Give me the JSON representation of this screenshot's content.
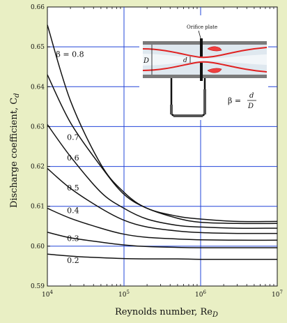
{
  "chart_data": {
    "type": "line",
    "title": "",
    "xlabel": "Reynolds number, Re",
    "xlabel_sub": "D",
    "ylabel": "Discharge coefficient, C",
    "ylabel_sub": "d",
    "xscale": "log",
    "xlim": [
      10000,
      10000000
    ],
    "ylim": [
      0.59,
      0.66
    ],
    "x_ticks": [
      {
        "v": 10000,
        "base": "10",
        "exp": "4"
      },
      {
        "v": 100000,
        "base": "10",
        "exp": "5"
      },
      {
        "v": 1000000,
        "base": "10",
        "exp": "6"
      },
      {
        "v": 10000000,
        "base": "10",
        "exp": "7"
      }
    ],
    "y_ticks": [
      "0.59",
      "0.60",
      "0.61",
      "0.62",
      "0.63",
      "0.64",
      "0.65",
      "0.66"
    ],
    "grid": true,
    "series": [
      {
        "name": "β = 0.8",
        "x": [
          10000,
          20000,
          50000,
          100000,
          200000,
          500000,
          1000000,
          3000000,
          10000000
        ],
        "y": [
          0.6555,
          0.6365,
          0.6205,
          0.6135,
          0.6095,
          0.6075,
          0.6068,
          0.6062,
          0.6062
        ]
      },
      {
        "name": "0.7",
        "x": [
          10000,
          20000,
          50000,
          100000,
          200000,
          500000,
          1000000,
          3000000,
          10000000
        ],
        "y": [
          0.643,
          0.631,
          0.62,
          0.613,
          0.6095,
          0.607,
          0.606,
          0.6057,
          0.6057
        ]
      },
      {
        "name": "0.6",
        "x": [
          10000,
          20000,
          50000,
          100000,
          200000,
          500000,
          1000000,
          3000000,
          10000000
        ],
        "y": [
          0.6305,
          0.6225,
          0.6135,
          0.6095,
          0.6068,
          0.6052,
          0.6048,
          0.6045,
          0.6045
        ]
      },
      {
        "name": "0.5",
        "x": [
          10000,
          20000,
          50000,
          100000,
          200000,
          500000,
          1000000,
          3000000,
          10000000
        ],
        "y": [
          0.6195,
          0.6145,
          0.6095,
          0.6065,
          0.6048,
          0.6038,
          0.6034,
          0.6032,
          0.6032
        ]
      },
      {
        "name": "0.4",
        "x": [
          10000,
          20000,
          50000,
          100000,
          200000,
          500000,
          1000000,
          3000000,
          10000000
        ],
        "y": [
          0.6095,
          0.607,
          0.6045,
          0.603,
          0.6022,
          0.6018,
          0.6016,
          0.6015,
          0.6015
        ]
      },
      {
        "name": "0.3",
        "x": [
          10000,
          20000,
          50000,
          100000,
          200000,
          500000,
          1000000,
          3000000,
          10000000
        ],
        "y": [
          0.6035,
          0.6021,
          0.601,
          0.6003,
          0.5999,
          0.5997,
          0.5996,
          0.5996,
          0.5996
        ]
      },
      {
        "name": "0.2",
        "x": [
          10000,
          20000,
          50000,
          100000,
          200000,
          500000,
          1000000,
          3000000,
          10000000
        ],
        "y": [
          0.598,
          0.5975,
          0.5971,
          0.5969,
          0.5968,
          0.5968,
          0.5967,
          0.5967,
          0.5967
        ]
      }
    ],
    "inset": {
      "plate_label": "Orifice plate",
      "pipe_symbol": "D",
      "bore_symbol": "d",
      "formula_lhs": "β =",
      "formula_num": "d",
      "formula_den": "D"
    }
  }
}
